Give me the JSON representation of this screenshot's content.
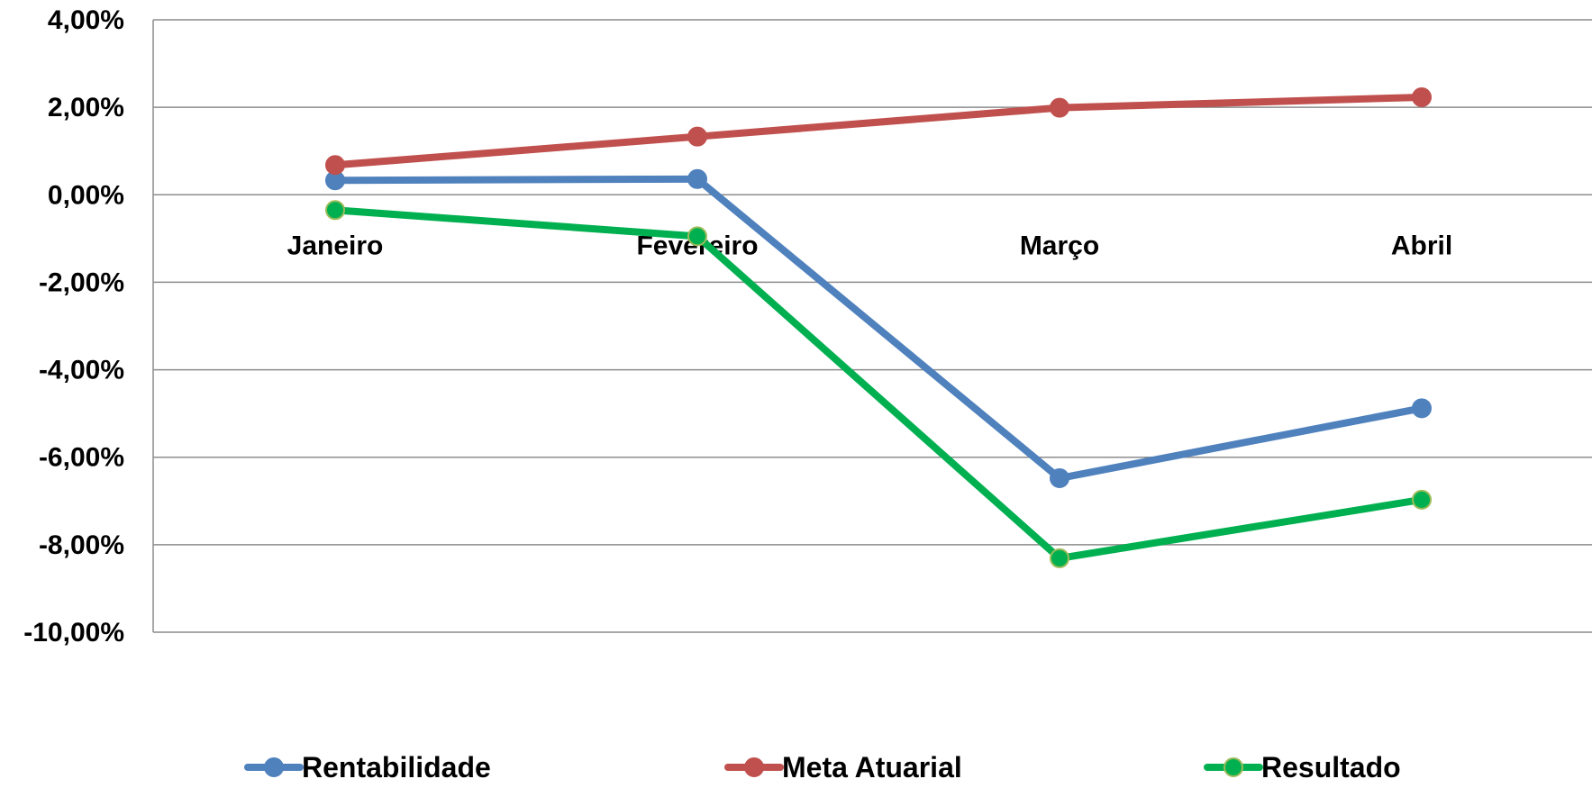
{
  "chart_data": {
    "type": "line",
    "title": "",
    "xlabel": "",
    "ylabel": "",
    "categories": [
      "Janeiro",
      "Fevereiro",
      "Março",
      "Abril"
    ],
    "ylim": [
      -10,
      4
    ],
    "y_ticks": [
      4,
      2,
      0,
      -2,
      -4,
      -6,
      -8,
      -10
    ],
    "y_tick_labels": [
      "4,00%",
      "2,00%",
      "0,00%",
      "-2,00%",
      "-4,00%",
      "-6,00%",
      "-8,00%",
      "-10,00%"
    ],
    "grid": true,
    "legend_position": "bottom",
    "series": [
      {
        "name": "Rentabilidade",
        "color": "#4F81BD",
        "values": [
          0.33,
          0.36,
          -6.48,
          -4.88
        ]
      },
      {
        "name": "Meta Atuarial",
        "color": "#C0504D",
        "values": [
          0.68,
          1.33,
          1.99,
          2.23
        ]
      },
      {
        "name": "Resultado",
        "color": "#00B050",
        "values": [
          -0.35,
          -0.95,
          -8.31,
          -6.97
        ]
      }
    ]
  }
}
